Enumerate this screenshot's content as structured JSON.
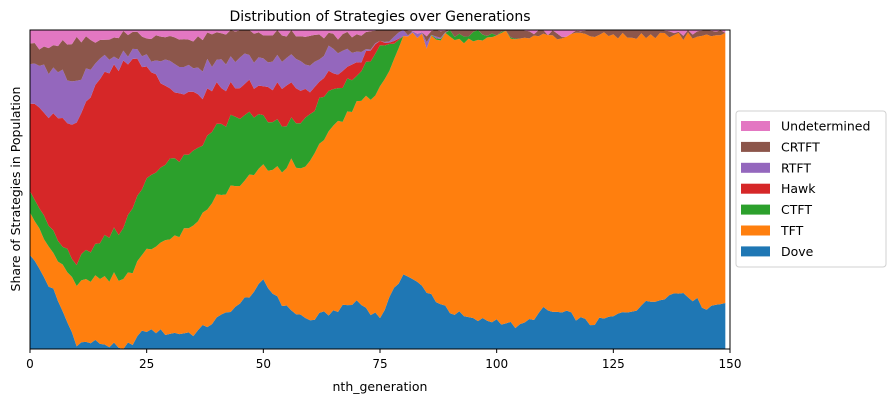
{
  "chart_data": {
    "type": "area",
    "stacked": true,
    "normalized": true,
    "title": "Distribution of Strategies over Generations",
    "xlabel": "nth_generation",
    "ylabel": "Share of Strategies in Population",
    "xlim": [
      0,
      150
    ],
    "ylim": [
      0,
      1
    ],
    "xticks": [
      0,
      25,
      50,
      75,
      100,
      125,
      150
    ],
    "yticks": [],
    "grid": false,
    "legend_placement": "center-right-outside",
    "legend_order": [
      "Undetermined",
      "CRTFT",
      "RTFT",
      "Hawk",
      "CTFT",
      "TFT",
      "Dove"
    ],
    "x_anchors": [
      0,
      5,
      10,
      15,
      20,
      25,
      30,
      35,
      40,
      45,
      50,
      55,
      60,
      65,
      70,
      75,
      80,
      85,
      90,
      95,
      100,
      105,
      110,
      115,
      120,
      125,
      130,
      135,
      140,
      145,
      149
    ],
    "series": [
      {
        "name": "Dove",
        "color": "#1f77b4",
        "values": [
          0.29,
          0.18,
          0.02,
          0.02,
          0.0,
          0.06,
          0.05,
          0.05,
          0.09,
          0.14,
          0.21,
          0.13,
          0.09,
          0.12,
          0.15,
          0.1,
          0.24,
          0.18,
          0.12,
          0.09,
          0.09,
          0.07,
          0.12,
          0.11,
          0.08,
          0.1,
          0.13,
          0.16,
          0.18,
          0.13,
          0.15
        ]
      },
      {
        "name": "TFT",
        "color": "#ff7f0e",
        "values": [
          0.14,
          0.11,
          0.19,
          0.2,
          0.22,
          0.25,
          0.3,
          0.34,
          0.38,
          0.37,
          0.36,
          0.44,
          0.49,
          0.59,
          0.62,
          0.71,
          0.74,
          0.79,
          0.86,
          0.88,
          0.89,
          0.91,
          0.86,
          0.87,
          0.91,
          0.88,
          0.85,
          0.82,
          0.8,
          0.86,
          0.83
        ]
      },
      {
        "name": "CTFT",
        "color": "#2ca02c",
        "values": [
          0.07,
          0.06,
          0.07,
          0.12,
          0.17,
          0.23,
          0.24,
          0.23,
          0.22,
          0.22,
          0.16,
          0.13,
          0.15,
          0.11,
          0.09,
          0.13,
          0.0,
          0.0,
          0.01,
          0.02,
          0.01,
          0.0,
          0.0,
          0.0,
          0.0,
          0.0,
          0.0,
          0.0,
          0.0,
          0.0,
          0.0
        ]
      },
      {
        "name": "Hawk",
        "color": "#d62728",
        "values": [
          0.27,
          0.37,
          0.44,
          0.52,
          0.52,
          0.35,
          0.22,
          0.18,
          0.12,
          0.09,
          0.1,
          0.13,
          0.07,
          0.05,
          0.04,
          0.02,
          0.0,
          0.0,
          0.0,
          0.0,
          0.0,
          0.0,
          0.0,
          0.0,
          0.0,
          0.0,
          0.0,
          0.0,
          0.0,
          0.0,
          0.0
        ]
      },
      {
        "name": "RTFT",
        "color": "#9467bd",
        "values": [
          0.13,
          0.15,
          0.12,
          0.06,
          0.02,
          0.03,
          0.08,
          0.08,
          0.08,
          0.09,
          0.08,
          0.09,
          0.09,
          0.07,
          0.03,
          0.0,
          0.01,
          0.01,
          0.0,
          0.0,
          0.0,
          0.0,
          0.0,
          0.0,
          0.0,
          0.0,
          0.0,
          0.0,
          0.0,
          0.0,
          0.0
        ]
      },
      {
        "name": "CRTFT",
        "color": "#8c564b",
        "values": [
          0.05,
          0.08,
          0.13,
          0.05,
          0.06,
          0.06,
          0.08,
          0.09,
          0.09,
          0.08,
          0.08,
          0.07,
          0.09,
          0.04,
          0.06,
          0.04,
          0.01,
          0.01,
          0.01,
          0.01,
          0.01,
          0.02,
          0.01,
          0.01,
          0.01,
          0.02,
          0.02,
          0.02,
          0.01,
          0.01,
          0.01
        ]
      },
      {
        "name": "Undetermined",
        "color": "#e377c2",
        "values": [
          0.05,
          0.05,
          0.03,
          0.03,
          0.01,
          0.02,
          0.03,
          0.03,
          0.01,
          0.01,
          0.01,
          0.01,
          0.02,
          0.02,
          0.01,
          0.0,
          0.0,
          0.01,
          0.0,
          0.0,
          0.0,
          0.0,
          0.01,
          0.01,
          0.0,
          0.0,
          0.0,
          0.0,
          0.01,
          0.0,
          0.01
        ]
      }
    ]
  }
}
